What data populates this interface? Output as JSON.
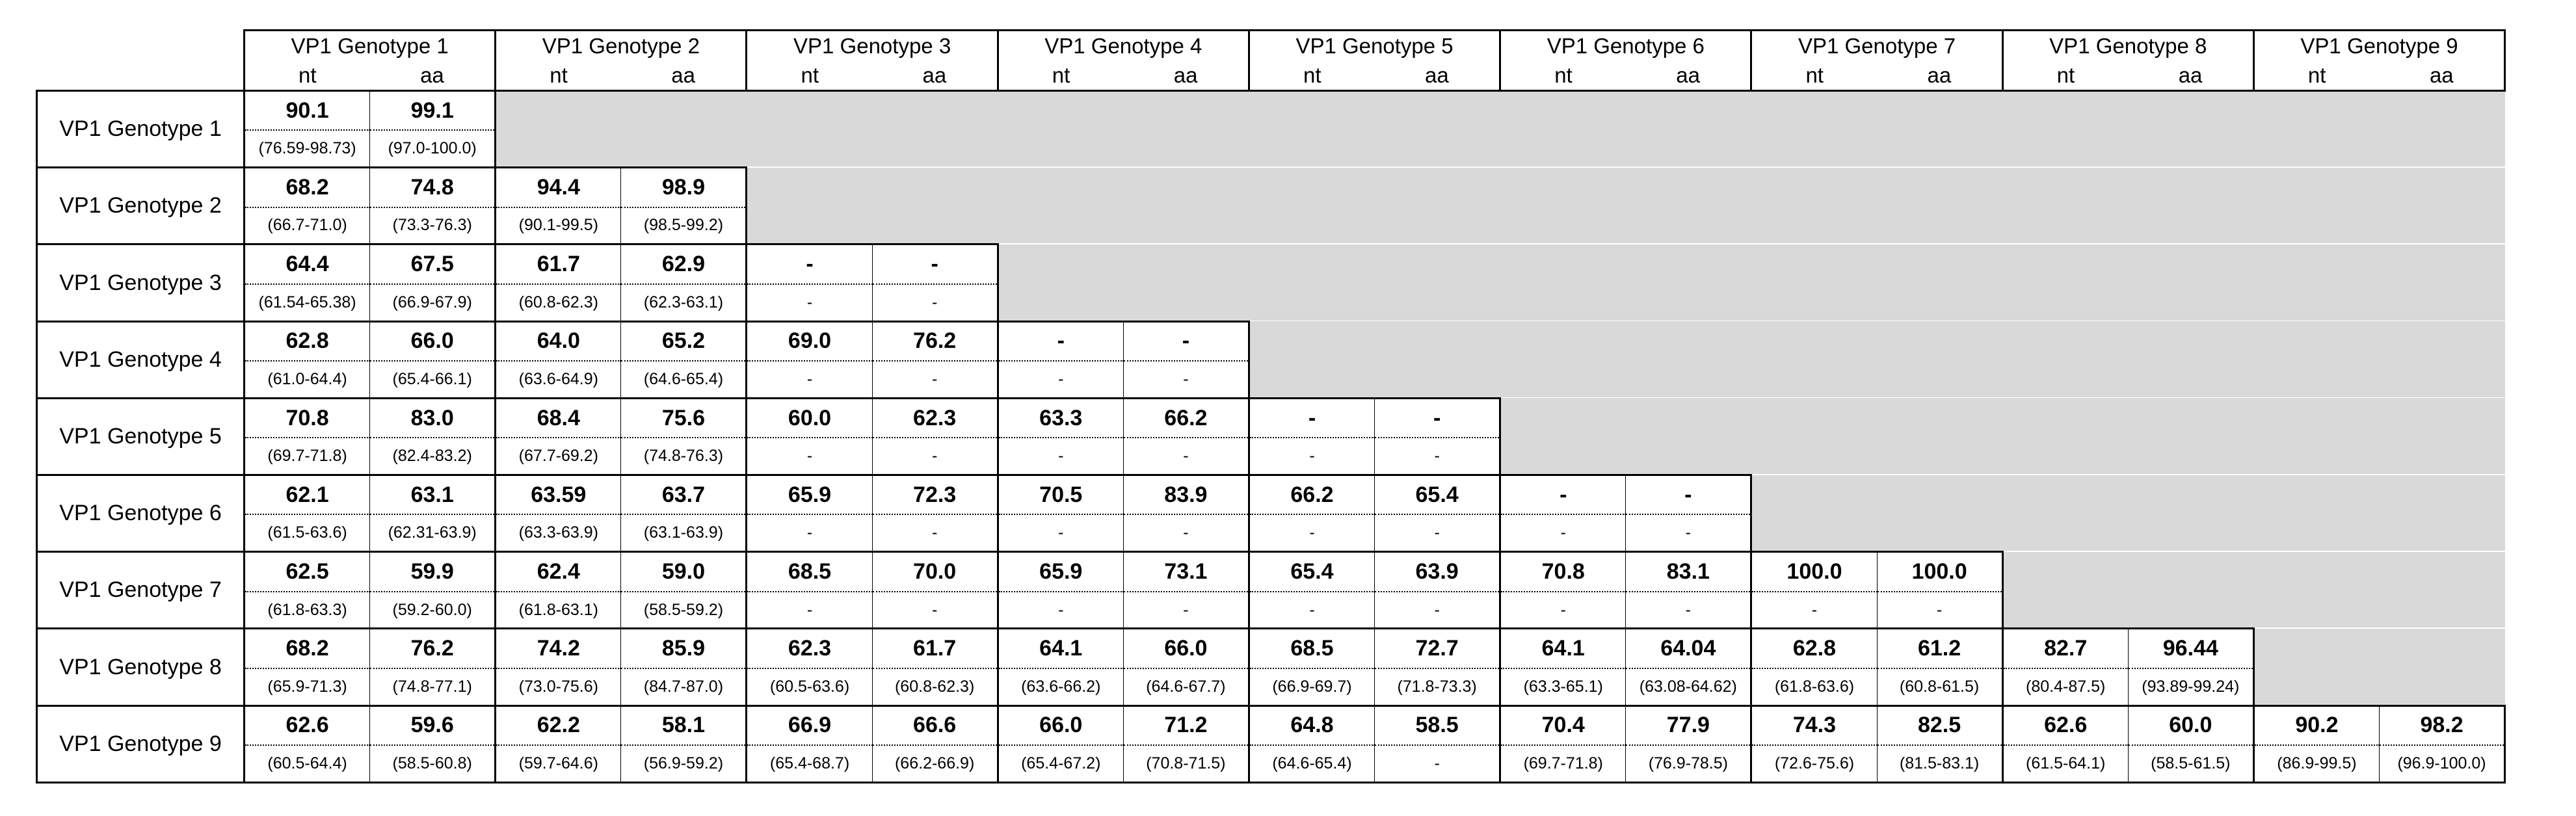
{
  "columns": [
    {
      "label": "VP1 Genotype 1",
      "nt": "nt",
      "aa": "aa"
    },
    {
      "label": "VP1 Genotype 2",
      "nt": "nt",
      "aa": "aa"
    },
    {
      "label": "VP1 Genotype 3",
      "nt": "nt",
      "aa": "aa"
    },
    {
      "label": "VP1 Genotype 4",
      "nt": "nt",
      "aa": "aa"
    },
    {
      "label": "VP1 Genotype 5",
      "nt": "nt",
      "aa": "aa"
    },
    {
      "label": "VP1 Genotype 6",
      "nt": "nt",
      "aa": "aa"
    },
    {
      "label": "VP1 Genotype 7",
      "nt": "nt",
      "aa": "aa"
    },
    {
      "label": "VP1 Genotype 8",
      "nt": "nt",
      "aa": "aa"
    },
    {
      "label": "VP1 Genotype 9",
      "nt": "nt",
      "aa": "aa"
    }
  ],
  "rows": [
    {
      "label": "VP1 Genotype 1",
      "cells": [
        {
          "nt": "90.1",
          "aa": "99.1",
          "nt_range": "(76.59-98.73)",
          "aa_range": "(97.0-100.0)"
        }
      ]
    },
    {
      "label": "VP1 Genotype 2",
      "cells": [
        {
          "nt": "68.2",
          "aa": "74.8",
          "nt_range": "(66.7-71.0)",
          "aa_range": "(73.3-76.3)"
        },
        {
          "nt": "94.4",
          "aa": "98.9",
          "nt_range": "(90.1-99.5)",
          "aa_range": "(98.5-99.2)"
        }
      ]
    },
    {
      "label": "VP1 Genotype 3",
      "cells": [
        {
          "nt": "64.4",
          "aa": "67.5",
          "nt_range": "(61.54-65.38)",
          "aa_range": "(66.9-67.9)"
        },
        {
          "nt": "61.7",
          "aa": "62.9",
          "nt_range": "(60.8-62.3)",
          "aa_range": "(62.3-63.1)"
        },
        {
          "nt": "-",
          "aa": "-",
          "nt_range": "-",
          "aa_range": "-"
        }
      ]
    },
    {
      "label": "VP1 Genotype 4",
      "cells": [
        {
          "nt": "62.8",
          "aa": "66.0",
          "nt_range": "(61.0-64.4)",
          "aa_range": "(65.4-66.1)"
        },
        {
          "nt": "64.0",
          "aa": "65.2",
          "nt_range": "(63.6-64.9)",
          "aa_range": "(64.6-65.4)"
        },
        {
          "nt": "69.0",
          "aa": "76.2",
          "nt_range": "-",
          "aa_range": "-"
        },
        {
          "nt": "-",
          "aa": "-",
          "nt_range": "-",
          "aa_range": "-"
        }
      ]
    },
    {
      "label": "VP1 Genotype 5",
      "cells": [
        {
          "nt": "70.8",
          "aa": "83.0",
          "nt_range": "(69.7-71.8)",
          "aa_range": "(82.4-83.2)"
        },
        {
          "nt": "68.4",
          "aa": "75.6",
          "nt_range": "(67.7-69.2)",
          "aa_range": "(74.8-76.3)"
        },
        {
          "nt": "60.0",
          "aa": "62.3",
          "nt_range": "-",
          "aa_range": "-"
        },
        {
          "nt": "63.3",
          "aa": "66.2",
          "nt_range": "-",
          "aa_range": "-"
        },
        {
          "nt": "-",
          "aa": "-",
          "nt_range": "-",
          "aa_range": "-"
        }
      ]
    },
    {
      "label": "VP1 Genotype 6",
      "cells": [
        {
          "nt": "62.1",
          "aa": "63.1",
          "nt_range": "(61.5-63.6)",
          "aa_range": "(62.31-63.9)"
        },
        {
          "nt": "63.59",
          "aa": "63.7",
          "nt_range": "(63.3-63.9)",
          "aa_range": "(63.1-63.9)"
        },
        {
          "nt": "65.9",
          "aa": "72.3",
          "nt_range": "-",
          "aa_range": "-"
        },
        {
          "nt": "70.5",
          "aa": "83.9",
          "nt_range": "-",
          "aa_range": "-"
        },
        {
          "nt": "66.2",
          "aa": "65.4",
          "nt_range": "-",
          "aa_range": "-"
        },
        {
          "nt": "-",
          "aa": "-",
          "nt_range": "-",
          "aa_range": "-"
        }
      ]
    },
    {
      "label": "VP1 Genotype 7",
      "cells": [
        {
          "nt": "62.5",
          "aa": "59.9",
          "nt_range": "(61.8-63.3)",
          "aa_range": "(59.2-60.0)"
        },
        {
          "nt": "62.4",
          "aa": "59.0",
          "nt_range": "(61.8-63.1)",
          "aa_range": "(58.5-59.2)"
        },
        {
          "nt": "68.5",
          "aa": "70.0",
          "nt_range": "-",
          "aa_range": "-"
        },
        {
          "nt": "65.9",
          "aa": "73.1",
          "nt_range": "-",
          "aa_range": "-"
        },
        {
          "nt": "65.4",
          "aa": "63.9",
          "nt_range": "-",
          "aa_range": "-"
        },
        {
          "nt": "70.8",
          "aa": "83.1",
          "nt_range": "-",
          "aa_range": "-"
        },
        {
          "nt": "100.0",
          "aa": "100.0",
          "nt_range": "-",
          "aa_range": "-"
        }
      ]
    },
    {
      "label": "VP1 Genotype 8",
      "cells": [
        {
          "nt": "68.2",
          "aa": "76.2",
          "nt_range": "(65.9-71.3)",
          "aa_range": "(74.8-77.1)"
        },
        {
          "nt": "74.2",
          "aa": "85.9",
          "nt_range": "(73.0-75.6)",
          "aa_range": "(84.7-87.0)"
        },
        {
          "nt": "62.3",
          "aa": "61.7",
          "nt_range": "(60.5-63.6)",
          "aa_range": "(60.8-62.3)"
        },
        {
          "nt": "64.1",
          "aa": "66.0",
          "nt_range": "(63.6-66.2)",
          "aa_range": "(64.6-67.7)"
        },
        {
          "nt": "68.5",
          "aa": "72.7",
          "nt_range": "(66.9-69.7)",
          "aa_range": "(71.8-73.3)"
        },
        {
          "nt": "64.1",
          "aa": "64.04",
          "nt_range": "(63.3-65.1)",
          "aa_range": "(63.08-64.62)"
        },
        {
          "nt": "62.8",
          "aa": "61.2",
          "nt_range": "(61.8-63.6)",
          "aa_range": "(60.8-61.5)"
        },
        {
          "nt": "82.7",
          "aa": "96.44",
          "nt_range": "(80.4-87.5)",
          "aa_range": "(93.89-99.24)"
        }
      ]
    },
    {
      "label": "VP1 Genotype 9",
      "cells": [
        {
          "nt": "62.6",
          "aa": "59.6",
          "nt_range": "(60.5-64.4)",
          "aa_range": "(58.5-60.8)"
        },
        {
          "nt": "62.2",
          "aa": "58.1",
          "nt_range": "(59.7-64.6)",
          "aa_range": "(56.9-59.2)"
        },
        {
          "nt": "66.9",
          "aa": "66.6",
          "nt_range": "(65.4-68.7)",
          "aa_range": "(66.2-66.9)"
        },
        {
          "nt": "66.0",
          "aa": "71.2",
          "nt_range": "(65.4-67.2)",
          "aa_range": "(70.8-71.5)"
        },
        {
          "nt": "64.8",
          "aa": "58.5",
          "nt_range": "(64.6-65.4)",
          "aa_range": "-"
        },
        {
          "nt": "70.4",
          "aa": "77.9",
          "nt_range": "(69.7-71.8)",
          "aa_range": "(76.9-78.5)"
        },
        {
          "nt": "74.3",
          "aa": "82.5",
          "nt_range": "(72.6-75.6)",
          "aa_range": "(81.5-83.1)"
        },
        {
          "nt": "62.6",
          "aa": "60.0",
          "nt_range": "(61.5-64.1)",
          "aa_range": "(58.5-61.5)"
        },
        {
          "nt": "90.2",
          "aa": "98.2",
          "nt_range": "(86.9-99.5)",
          "aa_range": "(96.9-100.0)"
        }
      ]
    }
  ]
}
